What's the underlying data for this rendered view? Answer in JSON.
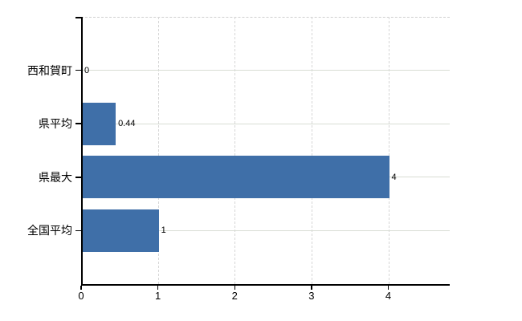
{
  "chart_data": {
    "type": "bar",
    "orientation": "horizontal",
    "title": "",
    "xlabel": "",
    "ylabel": "",
    "categories": [
      "西和賀町",
      "県平均",
      "県最大",
      "全国平均"
    ],
    "values": [
      0,
      0.44,
      4,
      1
    ],
    "value_labels": [
      "0",
      "0.44",
      "4",
      "1"
    ],
    "xticks": [
      0,
      1,
      2,
      3,
      4
    ],
    "xtick_labels": [
      "0",
      "1",
      "2",
      "3",
      "4"
    ],
    "xlim": [
      0,
      4.8
    ],
    "grid": true,
    "legend_position": "none",
    "colors": {
      "bar": "#3f6fa8",
      "axis": "#000000",
      "grid_vertical": "#d6d6d6",
      "grid_horizontal": "#d8ddd4",
      "plot_top_border": "#cfcfcf",
      "text": "#000000",
      "background": "#ffffff"
    }
  }
}
